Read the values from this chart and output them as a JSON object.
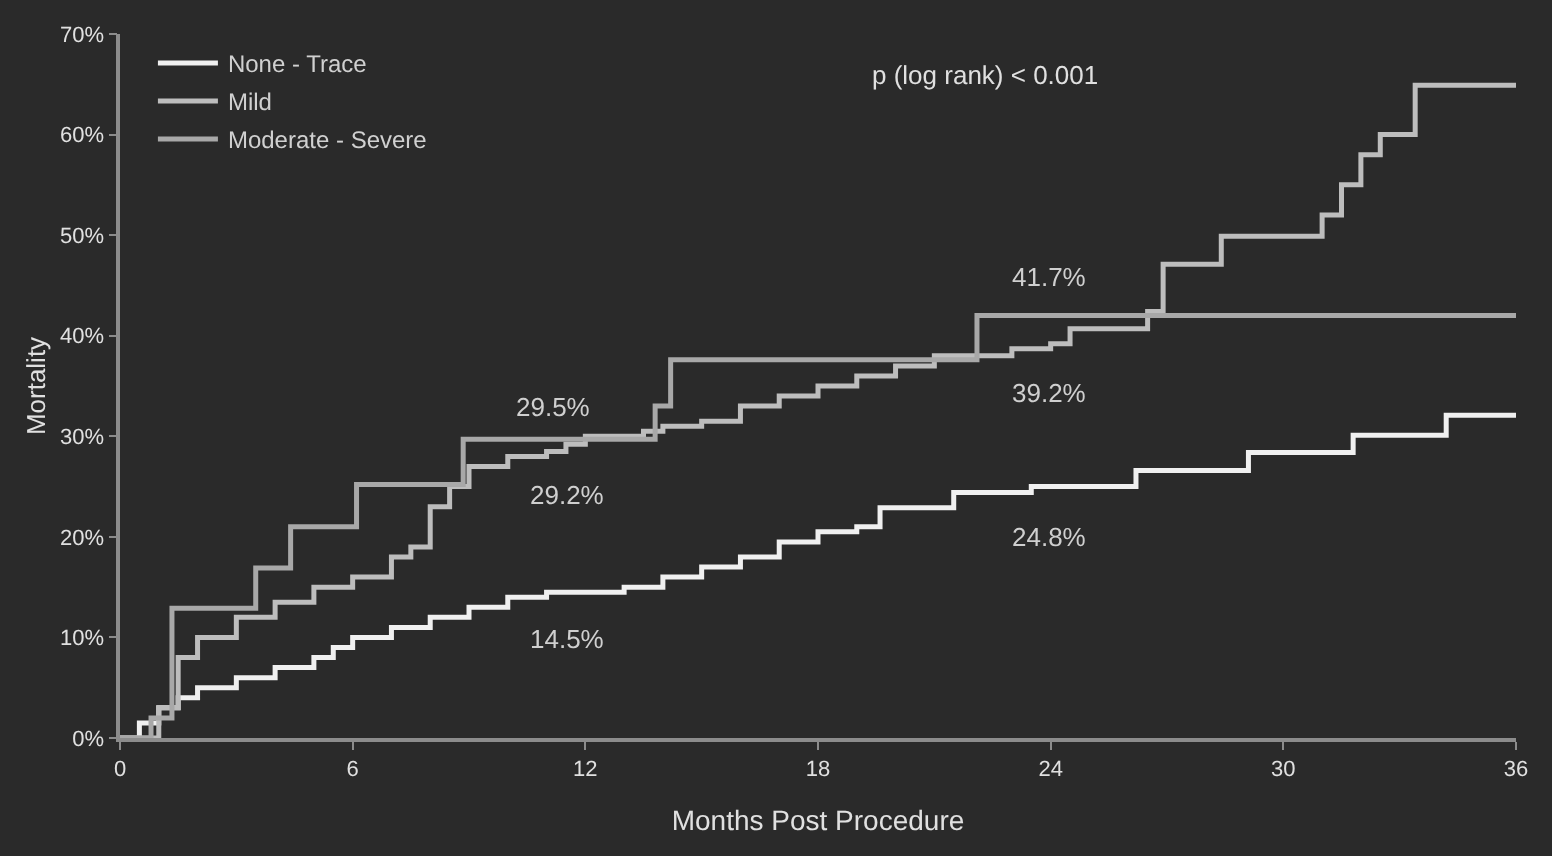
{
  "chart_data": {
    "type": "step",
    "xlabel": "Months Post Procedure",
    "ylabel": "Mortality",
    "annotations": [
      "p (log rank) < 0.001",
      "29.5%",
      "29.2%",
      "14.5%",
      "41.7%",
      "39.2%",
      "24.8%"
    ],
    "series": [
      {
        "name": "None - Trace",
        "color": "#f0f0f0",
        "x": [
          0,
          0.5,
          1,
          1.5,
          2,
          3,
          4,
          5,
          5.5,
          6,
          7,
          8,
          9,
          10,
          11,
          12,
          13,
          14,
          15,
          16,
          17,
          18,
          19,
          19.6,
          21.5,
          23.5,
          26.2,
          29.1,
          31.8,
          34.2,
          36
        ],
        "values": [
          0,
          1.5,
          3,
          4,
          5,
          6,
          7,
          8,
          9,
          10,
          11,
          12,
          13,
          14,
          14.5,
          14.5,
          15,
          16,
          17,
          18,
          19.5,
          20.5,
          21,
          22.9,
          24.4,
          25,
          26.6,
          28.4,
          30.1,
          32.1,
          32.1
        ]
      },
      {
        "name": "Mild",
        "color": "#bdbdbd",
        "x": [
          0,
          1,
          1.5,
          2,
          3,
          4,
          5,
          6,
          7,
          7.5,
          8,
          8.5,
          9,
          10,
          11,
          11.5,
          12,
          13.5,
          14,
          15,
          16,
          17,
          18,
          19,
          20,
          21,
          22,
          23,
          24,
          24.5,
          26.5,
          26.9,
          28.4,
          31,
          31.5,
          32,
          32.5,
          33.4,
          36
        ],
        "values": [
          0,
          3,
          8,
          10,
          12,
          13.5,
          15,
          16,
          18,
          19,
          23,
          25,
          27,
          28,
          28.5,
          29.2,
          30,
          30.5,
          31,
          31.5,
          33,
          34,
          35,
          36,
          37,
          38,
          38,
          38.7,
          39.2,
          40.7,
          42.4,
          47.1,
          49.9,
          52,
          55,
          58,
          60,
          64.9,
          64.9
        ]
      },
      {
        "name": "Moderate - Severe",
        "color": "#a8a8a8",
        "x": [
          0,
          0.8,
          1.34,
          3.5,
          4.4,
          6.1,
          8.85,
          13.8,
          14.2,
          22.1,
          36
        ],
        "values": [
          0,
          2,
          12.9,
          16.9,
          21,
          25.2,
          29.7,
          33,
          37.6,
          42,
          42
        ]
      }
    ],
    "xlim": [
      0,
      36
    ],
    "xticks": [
      0,
      6,
      12,
      18,
      24,
      30,
      36
    ],
    "ylim": [
      0,
      70
    ],
    "yticks": [
      {
        "value": 0,
        "label": "0%"
      },
      {
        "value": 10,
        "label": "10%"
      },
      {
        "value": 20,
        "label": "20%"
      },
      {
        "value": 30,
        "label": "30%"
      },
      {
        "value": 40,
        "label": "40%"
      },
      {
        "value": 50,
        "label": "50%"
      },
      {
        "value": 60,
        "label": "60%"
      },
      {
        "value": 70,
        "label": "70%"
      }
    ],
    "grid": false,
    "legend": "top left",
    "marker": "none",
    "line_style": "solid"
  }
}
